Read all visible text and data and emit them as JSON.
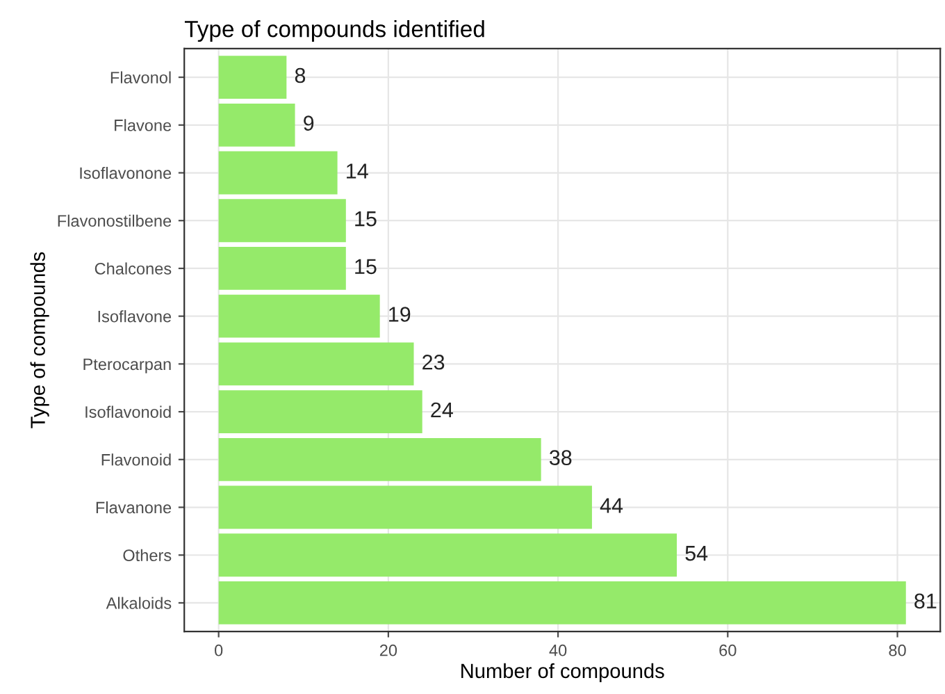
{
  "chart_data": {
    "type": "bar",
    "orientation": "horizontal",
    "title": "Type of compounds identified",
    "xlabel": "Number of compounds",
    "ylabel": "Type of compounds",
    "categories": [
      "Flavonol",
      "Flavone",
      "Isoflavonone",
      "Flavonostilbene",
      "Chalcones",
      "Isoflavone",
      "Pterocarpan",
      "Isoflavonoid",
      "Flavonoid",
      "Flavanone",
      "Others",
      "Alkaloids"
    ],
    "values": [
      8,
      9,
      14,
      15,
      15,
      19,
      23,
      24,
      38,
      44,
      54,
      81
    ],
    "color": "#95ea6a",
    "xlim": [
      -4.05,
      85.05
    ],
    "xticks": [
      0,
      20,
      40,
      60,
      80
    ],
    "grid": true,
    "data_labels": true
  }
}
